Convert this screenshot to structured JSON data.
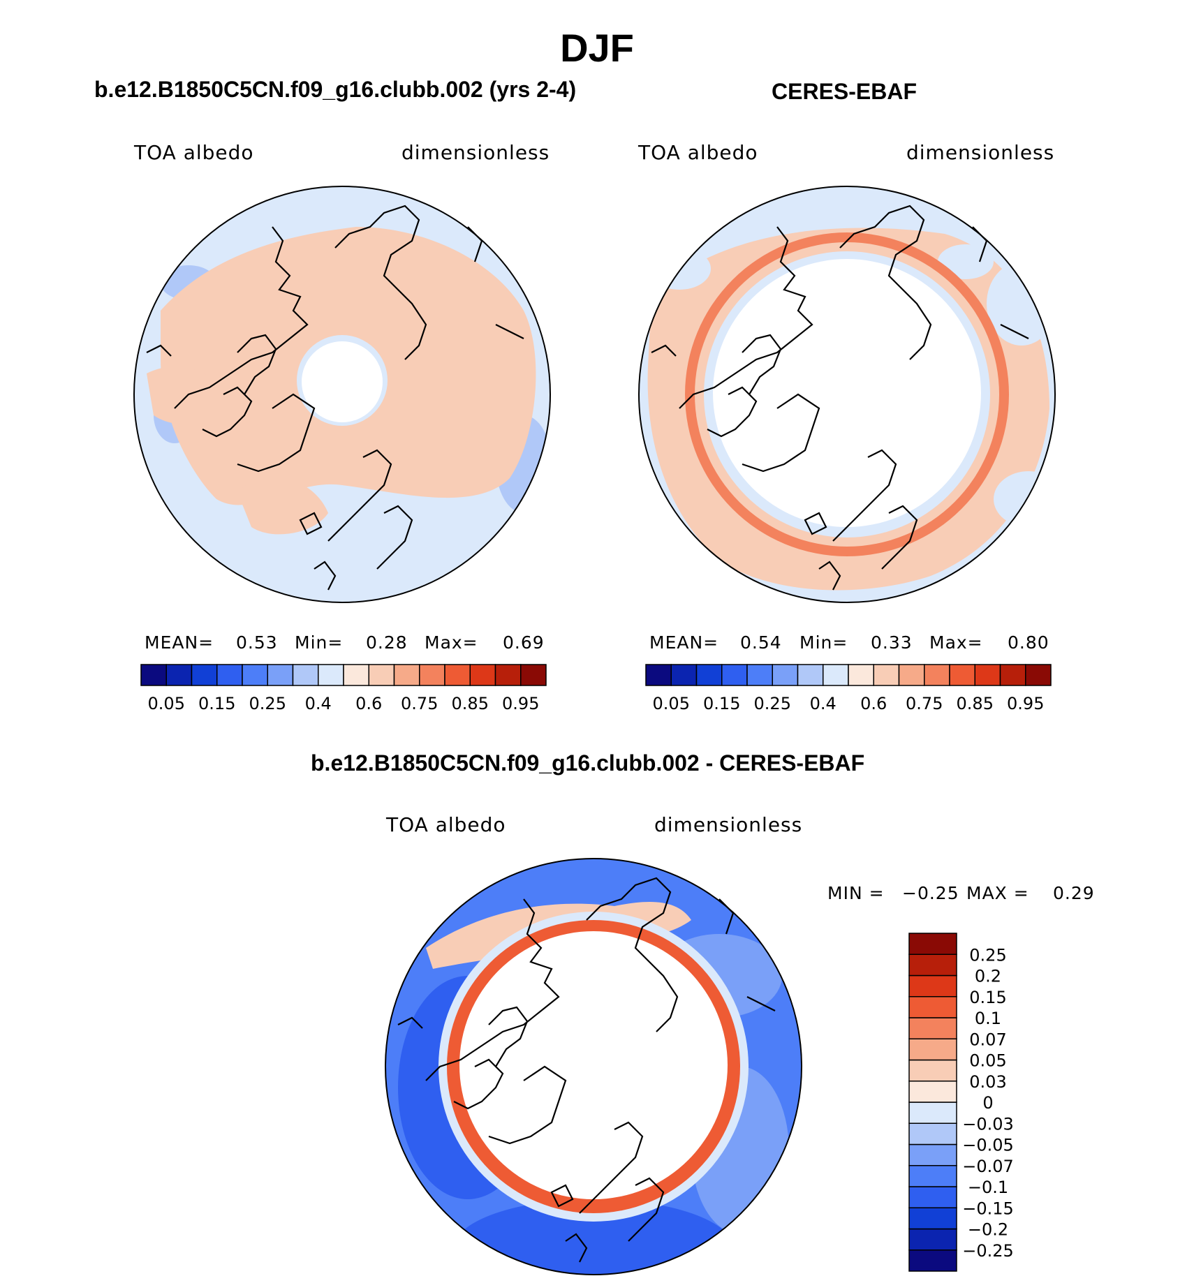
{
  "figure": {
    "season": "DJF",
    "panels": [
      {
        "title": "b.e12.B1850C5CN.f09_g16.clubb.002 (yrs 2-4)",
        "variable": "TOA albedo",
        "units": "dimensionless",
        "stats": {
          "mean_label": "MEAN=",
          "mean": "0.53",
          "min_label": "Min=",
          "min": "0.28",
          "max_label": "Max=",
          "max": "0.69"
        }
      },
      {
        "title": "CERES-EBAF",
        "variable": "TOA albedo",
        "units": "dimensionless",
        "stats": {
          "mean_label": "MEAN=",
          "mean": "0.54",
          "min_label": "Min=",
          "min": "0.33",
          "max_label": "Max=",
          "max": "0.80"
        }
      }
    ],
    "diff_panel": {
      "title": "b.e12.B1850C5CN.f09_g16.clubb.002 - CERES-EBAF",
      "variable": "TOA albedo",
      "units": "dimensionless",
      "stats": {
        "min_label": "MIN =",
        "min": "−0.25",
        "max_label": "MAX =",
        "max": "0.29"
      }
    }
  },
  "colorbars": {
    "abs": {
      "colors": [
        "#0b0a7f",
        "#0b24b0",
        "#1140d6",
        "#2f5ff0",
        "#4d7ef8",
        "#7aa0f8",
        "#b0c8f8",
        "#dbe9fb",
        "#fbe8dc",
        "#f8cdb6",
        "#f6aa89",
        "#f3825d",
        "#ee5b34",
        "#dd3818",
        "#b71f0a",
        "#8a0a05"
      ],
      "tick_labels": [
        "0.05",
        "0.15",
        "0.25",
        "0.4",
        "0.6",
        "0.75",
        "0.85",
        "0.95"
      ]
    },
    "diff": {
      "colors": [
        "#0b0a7f",
        "#0b24b0",
        "#1140d6",
        "#2f5ff0",
        "#4d7ef8",
        "#7aa0f8",
        "#b0c8f8",
        "#dbe9fb",
        "#fbe8dc",
        "#f8cdb6",
        "#f6aa89",
        "#f3825d",
        "#ee5b34",
        "#dd3818",
        "#b71f0a",
        "#8a0a05"
      ],
      "tick_labels": [
        "−0.25",
        "−0.2",
        "−0.15",
        "−0.1",
        "−0.07",
        "−0.05",
        "−0.03",
        "0",
        "0.03",
        "0.05",
        "0.07",
        "0.1",
        "0.15",
        "0.2",
        "0.25"
      ]
    }
  },
  "map": {
    "projection": "north polar stereographic",
    "coastlines": true,
    "palette": {
      "ocean_light": "#dbe9fb",
      "land_warm": "#f8cdb6",
      "missing": "#ffffff",
      "ring": "#ee5b34",
      "deep_blue": "#2f5ff0"
    }
  }
}
